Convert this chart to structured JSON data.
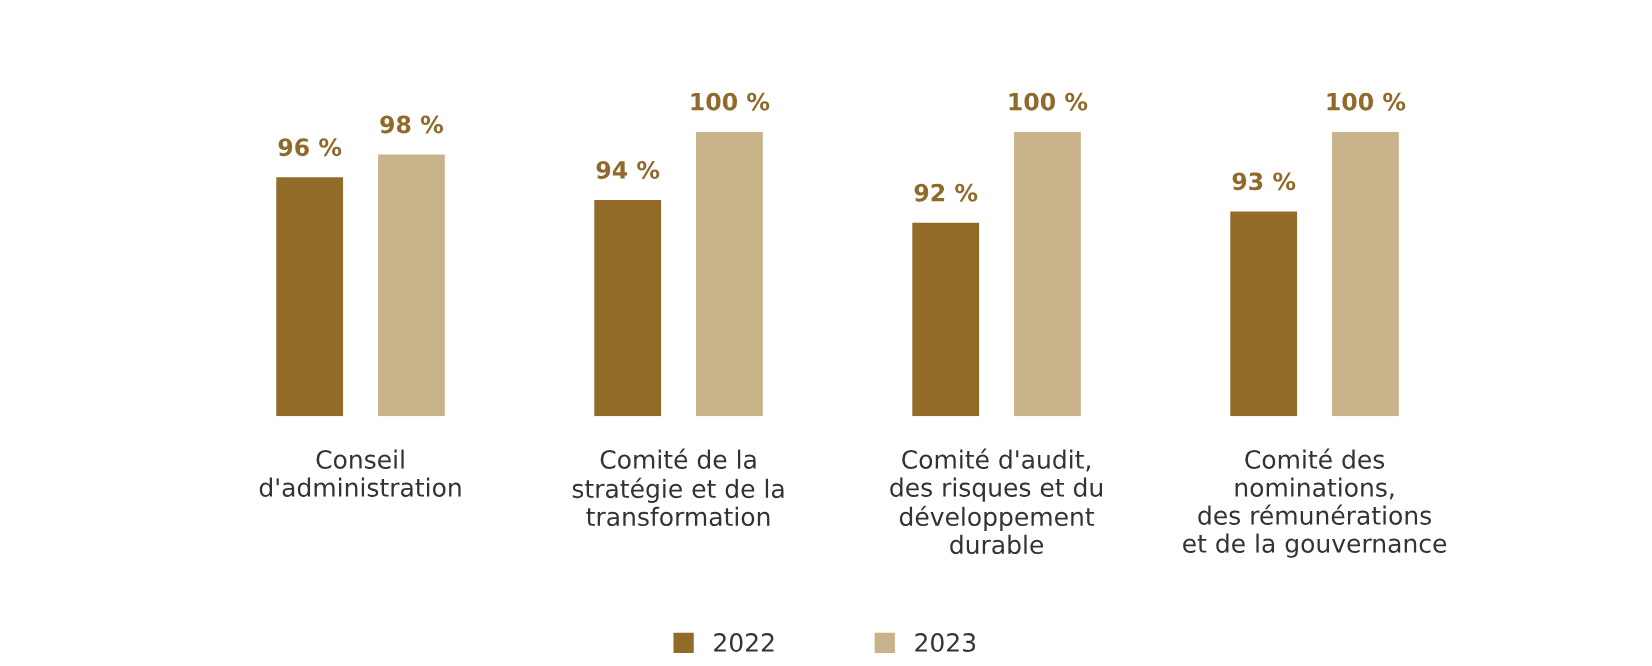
{
  "chart_data": {
    "type": "bar",
    "categories": [
      "Conseil\nd'administration",
      "Comité de la\nstratégie et de la\ntransformation",
      "Comité d'audit,\ndes risques et du\ndéveloppement\ndurable",
      "Comité des\nnominations,\ndes rémunérations\net de la gouvernance"
    ],
    "series": [
      {
        "name": "2022",
        "color": "#936b28",
        "values": [
          96,
          94,
          92,
          93
        ],
        "value_labels": [
          "96 %",
          "94 %",
          "92 %",
          "93 %"
        ]
      },
      {
        "name": "2023",
        "color": "#c9b38a",
        "values": [
          98,
          100,
          100,
          100
        ],
        "value_labels": [
          "98 %",
          "100 %",
          "100 %",
          "100 %"
        ]
      }
    ],
    "ylim": [
      75,
      100
    ],
    "tick_labels": "x",
    "grid": false,
    "legend": "bottom"
  }
}
